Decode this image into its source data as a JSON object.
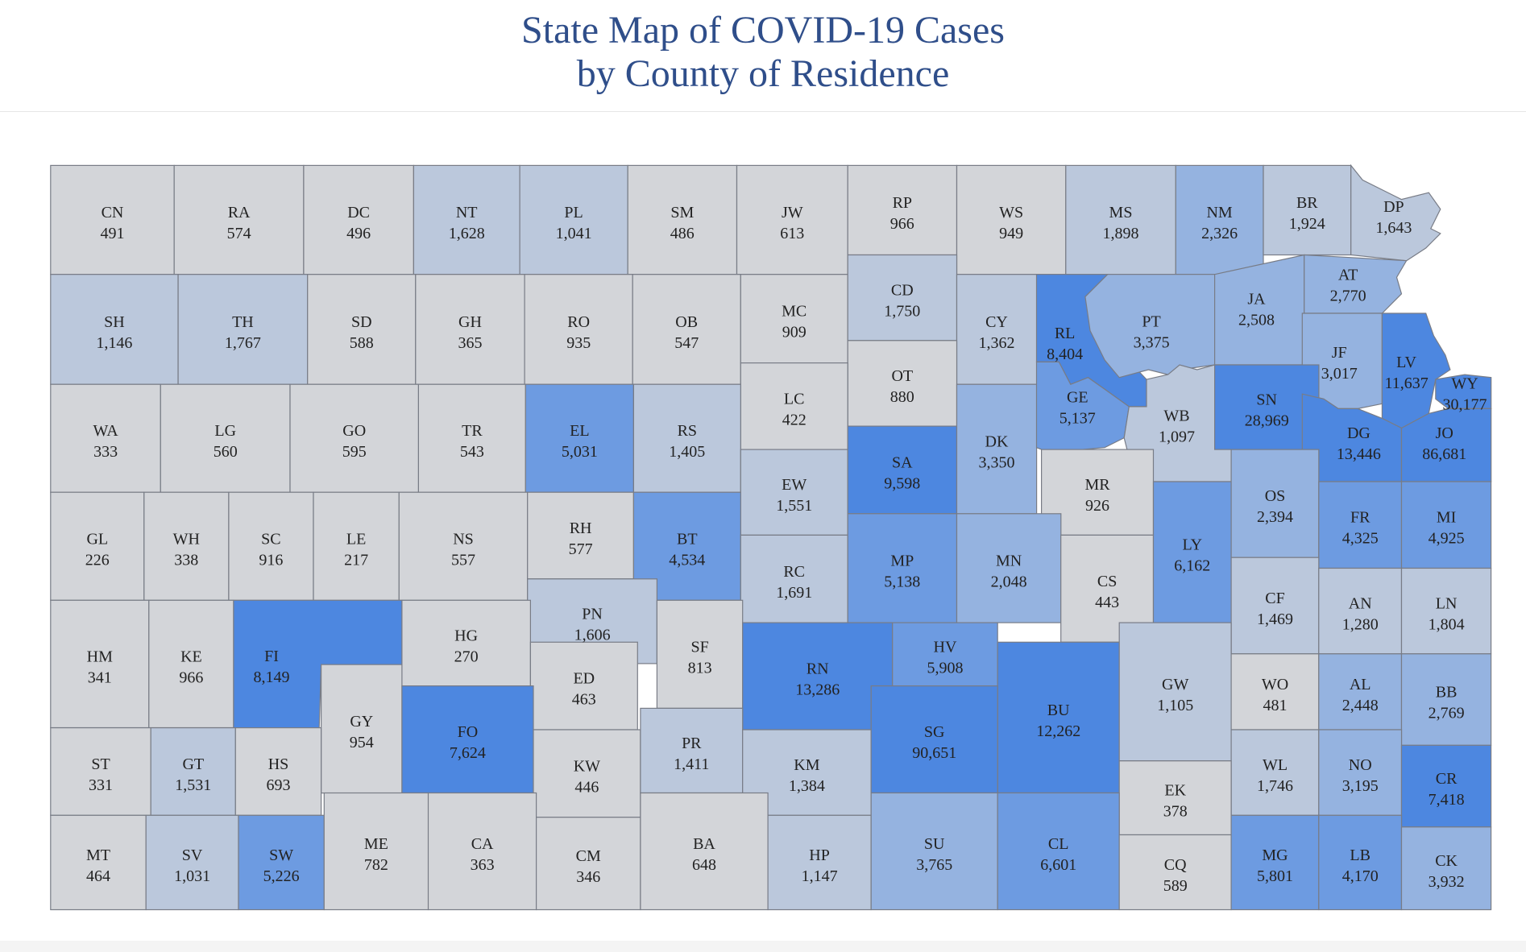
{
  "title": [
    "State Map of COVID-19 Cases",
    "by County of Residence"
  ],
  "colors": {
    "scale": [
      "#d3d5d9",
      "#bbc8dc",
      "#95b3e0",
      "#6d9be1",
      "#4d87e0"
    ],
    "border": "#787c86",
    "text": "#222222",
    "title": "#2f4e8a"
  },
  "legend": [],
  "counties": [
    {
      "abbr": "CN",
      "cases": "491"
    },
    {
      "abbr": "RA",
      "cases": "574"
    },
    {
      "abbr": "DC",
      "cases": "496"
    },
    {
      "abbr": "NT",
      "cases": "1,628"
    },
    {
      "abbr": "PL",
      "cases": "1,041"
    },
    {
      "abbr": "SM",
      "cases": "486"
    },
    {
      "abbr": "JW",
      "cases": "613"
    },
    {
      "abbr": "RP",
      "cases": "966"
    },
    {
      "abbr": "WS",
      "cases": "949"
    },
    {
      "abbr": "MS",
      "cases": "1,898"
    },
    {
      "abbr": "NM",
      "cases": "2,326"
    },
    {
      "abbr": "BR",
      "cases": "1,924"
    },
    {
      "abbr": "DP",
      "cases": "1,643"
    },
    {
      "abbr": "SH",
      "cases": "1,146"
    },
    {
      "abbr": "TH",
      "cases": "1,767"
    },
    {
      "abbr": "SD",
      "cases": "588"
    },
    {
      "abbr": "GH",
      "cases": "365"
    },
    {
      "abbr": "RO",
      "cases": "935"
    },
    {
      "abbr": "OB",
      "cases": "547"
    },
    {
      "abbr": "MC",
      "cases": "909"
    },
    {
      "abbr": "CD",
      "cases": "1,750"
    },
    {
      "abbr": "CY",
      "cases": "1,362"
    },
    {
      "abbr": "RL",
      "cases": "8,404"
    },
    {
      "abbr": "PT",
      "cases": "3,375"
    },
    {
      "abbr": "JA",
      "cases": "2,508"
    },
    {
      "abbr": "AT",
      "cases": "2,770"
    },
    {
      "abbr": "OT",
      "cases": "880"
    },
    {
      "abbr": "LC",
      "cases": "422"
    },
    {
      "abbr": "JF",
      "cases": "3,017"
    },
    {
      "abbr": "LV",
      "cases": "11,637"
    },
    {
      "abbr": "WY",
      "cases": "30,177"
    },
    {
      "abbr": "WA",
      "cases": "333"
    },
    {
      "abbr": "LG",
      "cases": "560"
    },
    {
      "abbr": "GO",
      "cases": "595"
    },
    {
      "abbr": "TR",
      "cases": "543"
    },
    {
      "abbr": "EL",
      "cases": "5,031"
    },
    {
      "abbr": "RS",
      "cases": "1,405"
    },
    {
      "abbr": "EW",
      "cases": "1,551"
    },
    {
      "abbr": "SA",
      "cases": "9,598"
    },
    {
      "abbr": "DK",
      "cases": "3,350"
    },
    {
      "abbr": "GE",
      "cases": "5,137"
    },
    {
      "abbr": "WB",
      "cases": "1,097"
    },
    {
      "abbr": "SN",
      "cases": "28,969"
    },
    {
      "abbr": "DG",
      "cases": "13,446"
    },
    {
      "abbr": "JO",
      "cases": "86,681"
    },
    {
      "abbr": "MR",
      "cases": "926"
    },
    {
      "abbr": "GL",
      "cases": "226"
    },
    {
      "abbr": "WH",
      "cases": "338"
    },
    {
      "abbr": "SC",
      "cases": "916"
    },
    {
      "abbr": "LE",
      "cases": "217"
    },
    {
      "abbr": "NS",
      "cases": "557"
    },
    {
      "abbr": "RH",
      "cases": "577"
    },
    {
      "abbr": "BT",
      "cases": "4,534"
    },
    {
      "abbr": "RC",
      "cases": "1,691"
    },
    {
      "abbr": "MP",
      "cases": "5,138"
    },
    {
      "abbr": "MN",
      "cases": "2,048"
    },
    {
      "abbr": "CS",
      "cases": "443"
    },
    {
      "abbr": "LY",
      "cases": "6,162"
    },
    {
      "abbr": "OS",
      "cases": "2,394"
    },
    {
      "abbr": "FR",
      "cases": "4,325"
    },
    {
      "abbr": "MI",
      "cases": "4,925"
    },
    {
      "abbr": "PN",
      "cases": "1,606"
    },
    {
      "abbr": "CF",
      "cases": "1,469"
    },
    {
      "abbr": "AN",
      "cases": "1,280"
    },
    {
      "abbr": "LN",
      "cases": "1,804"
    },
    {
      "abbr": "HM",
      "cases": "341"
    },
    {
      "abbr": "KE",
      "cases": "966"
    },
    {
      "abbr": "FI",
      "cases": "8,149"
    },
    {
      "abbr": "HG",
      "cases": "270"
    },
    {
      "abbr": "SF",
      "cases": "813"
    },
    {
      "abbr": "RN",
      "cases": "13,286"
    },
    {
      "abbr": "HV",
      "cases": "5,908"
    },
    {
      "abbr": "ED",
      "cases": "463"
    },
    {
      "abbr": "GY",
      "cases": "954"
    },
    {
      "abbr": "BU",
      "cases": "12,262"
    },
    {
      "abbr": "GW",
      "cases": "1,105"
    },
    {
      "abbr": "WO",
      "cases": "481"
    },
    {
      "abbr": "AL",
      "cases": "2,448"
    },
    {
      "abbr": "BB",
      "cases": "2,769"
    },
    {
      "abbr": "ST",
      "cases": "331"
    },
    {
      "abbr": "GT",
      "cases": "1,531"
    },
    {
      "abbr": "HS",
      "cases": "693"
    },
    {
      "abbr": "FO",
      "cases": "7,624"
    },
    {
      "abbr": "KW",
      "cases": "446"
    },
    {
      "abbr": "PR",
      "cases": "1,411"
    },
    {
      "abbr": "KM",
      "cases": "1,384"
    },
    {
      "abbr": "SG",
      "cases": "90,651"
    },
    {
      "abbr": "WL",
      "cases": "1,746"
    },
    {
      "abbr": "NO",
      "cases": "3,195"
    },
    {
      "abbr": "CR",
      "cases": "7,418"
    },
    {
      "abbr": "EK",
      "cases": "378"
    },
    {
      "abbr": "MT",
      "cases": "464"
    },
    {
      "abbr": "SV",
      "cases": "1,031"
    },
    {
      "abbr": "SW",
      "cases": "5,226"
    },
    {
      "abbr": "ME",
      "cases": "782"
    },
    {
      "abbr": "CA",
      "cases": "363"
    },
    {
      "abbr": "CM",
      "cases": "346"
    },
    {
      "abbr": "BA",
      "cases": "648"
    },
    {
      "abbr": "HP",
      "cases": "1,147"
    },
    {
      "abbr": "SU",
      "cases": "3,765"
    },
    {
      "abbr": "CL",
      "cases": "6,601"
    },
    {
      "abbr": "CQ",
      "cases": "589"
    },
    {
      "abbr": "MG",
      "cases": "5,801"
    },
    {
      "abbr": "LB",
      "cases": "4,170"
    },
    {
      "abbr": "CK",
      "cases": "3,932"
    }
  ]
}
